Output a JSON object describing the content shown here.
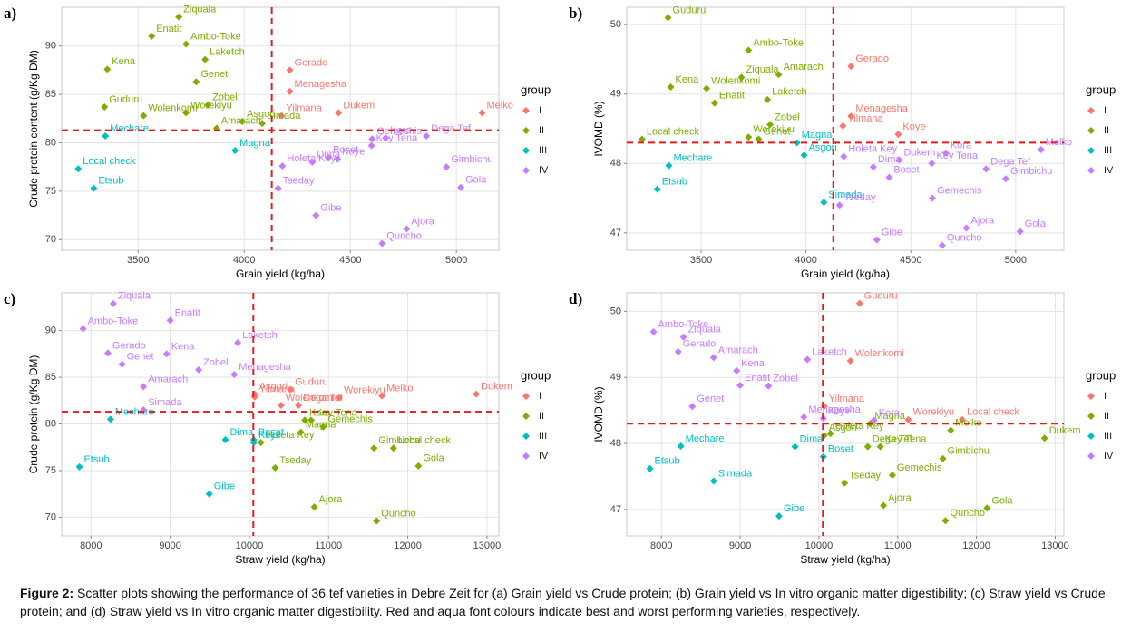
{
  "chart_data": [
    {
      "type": "scatter",
      "panel": "a)",
      "x_label": "Grain yield (kg/ha)",
      "y_label": "Crude protein content (g/Kg DM)",
      "xlim": [
        3140,
        5200
      ],
      "ylim": [
        68.9,
        94
      ],
      "xticks": [
        3500,
        4000,
        4500,
        5000
      ],
      "yticks": [
        70,
        75,
        80,
        85,
        90
      ],
      "grid": true,
      "vline": 4130,
      "hline": 81.3,
      "legend_title": "group",
      "legend_position": "right",
      "series": [
        {
          "name": "I",
          "color": "#f8766d",
          "labels": [
            "Gerado",
            "Menagesha",
            "Yilmana",
            "Dukem",
            "Melko"
          ],
          "x": [
            4215,
            4215,
            4176,
            4445,
            5121
          ],
          "values": [
            87.5,
            85.3,
            82.8,
            83.1,
            83.1
          ]
        },
        {
          "name": "II",
          "color": "#7cae00",
          "labels": [
            "Ziquala",
            "Enatit",
            "Ambo-Toke",
            "Kena",
            "Laketch",
            "Genet",
            "Zobel",
            "Guduru",
            "Wolenkomi",
            "Worekiyu",
            "Asgori",
            "Simada",
            "Amarach"
          ],
          "x": [
            3692,
            3564,
            3726,
            3355,
            3816,
            3774,
            3829,
            3342,
            3526,
            3726,
            3991,
            4085,
            3870
          ],
          "values": [
            93.0,
            91.0,
            90.2,
            87.6,
            88.6,
            86.3,
            83.9,
            83.7,
            82.8,
            83.1,
            82.2,
            82.0,
            81.5
          ]
        },
        {
          "name": "III",
          "color": "#00bfc4",
          "labels": [
            "Mechare",
            "Magna",
            "Local check",
            "Etsub"
          ],
          "x": [
            3346,
            3957,
            3218,
            3291
          ],
          "values": [
            80.7,
            79.2,
            77.3,
            75.3
          ]
        },
        {
          "name": "IV",
          "color": "#c77cff",
          "labels": [
            "Kora",
            "Gemechis",
            "Key Tena",
            "Dega Tef",
            "Boset",
            "Koye",
            "Dima",
            "Holeta Key",
            "Tseday",
            "Gimbichu",
            "Gola",
            "Gibe",
            "Ajora",
            "Quncho"
          ],
          "x": [
            4667,
            4603,
            4600,
            4859,
            4397,
            4440,
            4321,
            4180,
            4160,
            4953,
            5021,
            4338,
            4765,
            4650
          ],
          "values": [
            80.5,
            80.4,
            79.7,
            80.7,
            78.5,
            78.3,
            78.0,
            77.6,
            75.3,
            77.5,
            75.4,
            72.5,
            71.1,
            69.6
          ]
        }
      ]
    },
    {
      "type": "scatter",
      "panel": "b)",
      "x_label": "Grain yield (kg/ha)",
      "y_label": "IVOMD (%)",
      "xlim": [
        3145,
        5230
      ],
      "ylim": [
        46.75,
        50.25
      ],
      "xticks": [
        3500,
        4000,
        4500,
        5000
      ],
      "yticks": [
        47,
        48,
        49,
        50
      ],
      "grid": true,
      "vline": 4130,
      "hline": 48.3,
      "legend_title": "group",
      "legend_position": "right",
      "series": [
        {
          "name": "I",
          "color": "#f8766d",
          "labels": [
            "Gerado",
            "Menagesha",
            "Yilmana",
            "Koye"
          ],
          "x": [
            4215,
            4215,
            4176,
            4440
          ],
          "values": [
            49.4,
            48.68,
            48.54,
            48.42
          ]
        },
        {
          "name": "II",
          "color": "#7cae00",
          "labels": [
            "Guduru",
            "Ambo-Toke",
            "Amarach",
            "Ziquala",
            "Laketch",
            "Kena",
            "Wolenkomi",
            "Enatit",
            "Zobel",
            "Genet",
            "Local check",
            "Worekiyu"
          ],
          "x": [
            3342,
            3726,
            3870,
            3692,
            3816,
            3355,
            3526,
            3564,
            3829,
            3774,
            3218,
            3726
          ],
          "values": [
            50.1,
            49.63,
            49.28,
            49.24,
            48.92,
            49.1,
            49.08,
            48.87,
            48.56,
            48.35,
            48.35,
            48.38
          ]
        },
        {
          "name": "III",
          "color": "#00bfc4",
          "labels": [
            "Mechare",
            "Etsub",
            "Simada",
            "Magna",
            "Asgori"
          ],
          "x": [
            3346,
            3291,
            4085,
            3957,
            3991
          ],
          "values": [
            47.97,
            47.63,
            47.44,
            48.3,
            48.12
          ]
        },
        {
          "name": "IV",
          "color": "#c77cff",
          "labels": [
            "Holeta Key",
            "Dima",
            "Dukem",
            "Kora",
            "Melko",
            "Dega Tef",
            "Key Tena",
            "Gimbichu",
            "Boset",
            "Gemechis",
            "Tseday",
            "Ajora",
            "Gola",
            "Gibe",
            "Quncho"
          ],
          "x": [
            4180,
            4321,
            4445,
            4667,
            5121,
            4859,
            4600,
            4953,
            4397,
            4603,
            4160,
            4765,
            5021,
            4338,
            4650
          ],
          "values": [
            48.1,
            47.95,
            48.05,
            48.15,
            48.2,
            47.92,
            48.0,
            47.78,
            47.8,
            47.5,
            47.4,
            47.07,
            47.02,
            46.9,
            46.82
          ]
        }
      ]
    },
    {
      "type": "scatter",
      "panel": "c)",
      "x_label": "Straw yield (kg/ha)",
      "y_label": "Crude protein (g/Kg DM)",
      "xlim": [
        7630,
        13150
      ],
      "ylim": [
        68,
        94.05
      ],
      "xticks": [
        8000,
        9000,
        10000,
        11000,
        12000,
        13000
      ],
      "yticks": [
        70,
        75,
        80,
        85,
        90
      ],
      "grid": true,
      "vline": 10050,
      "hline": 81.3,
      "legend_title": "group",
      "legend_position": "right",
      "series": [
        {
          "name": "I",
          "color": "#f8766d",
          "labels": [
            "Asgori",
            "Yilmana",
            "Wolenkomi",
            "Dega Tef",
            "Guduru",
            "Worekiyu",
            "Melko",
            "Dukem"
          ],
          "x": [
            10067,
            10067,
            10400,
            10620,
            10517,
            11135,
            11674,
            12865
          ],
          "values": [
            83.2,
            82.9,
            82.0,
            82.0,
            83.7,
            82.8,
            83.0,
            83.2
          ]
        },
        {
          "name": "II",
          "color": "#7cae00",
          "labels": [
            "Kora",
            "Key Tena",
            "Gemechis",
            "Magna",
            "Holeta Key",
            "Tseday",
            "Local check",
            "Gimbichu",
            "Gola",
            "Ajora",
            "Quncho"
          ],
          "x": [
            10700,
            10780,
            10933,
            10650,
            10146,
            10326,
            11820,
            11573,
            12135,
            10820,
            11607
          ],
          "values": [
            80.4,
            80.4,
            79.7,
            79.1,
            78.0,
            75.3,
            77.4,
            77.4,
            75.5,
            71.1,
            69.6
          ]
        },
        {
          "name": "III",
          "color": "#00bfc4",
          "labels": [
            "Mechare",
            "Dima",
            "Boset",
            "Koye",
            "Etsub",
            "Gibe"
          ],
          "x": [
            8247,
            9697,
            10056,
            10056,
            7854,
            9494
          ],
          "values": [
            80.5,
            78.3,
            78.3,
            78.0,
            75.4,
            72.5
          ]
        },
        {
          "name": "IV",
          "color": "#c77cff",
          "labels": [
            "Ziquala",
            "Ambo-Toke",
            "Enatit",
            "Kena",
            "Gerado",
            "Genet",
            "Laketch",
            "Zobel",
            "Menagesha",
            "Amarach",
            "Simada"
          ],
          "x": [
            8281,
            7900,
            9000,
            8955,
            8213,
            8393,
            9854,
            9360,
            9809,
            8663,
            8663
          ],
          "values": [
            92.9,
            90.2,
            91.1,
            87.5,
            87.6,
            86.4,
            88.7,
            85.8,
            85.3,
            84.0,
            81.5
          ]
        }
      ]
    },
    {
      "type": "scatter",
      "panel": "d)",
      "x_label": "Straw yield (kg/ha)",
      "y_label": "IVOMD (%)",
      "xlim": [
        7560,
        13110
      ],
      "ylim": [
        46.6,
        50.28
      ],
      "xticks": [
        8000,
        9000,
        10000,
        11000,
        12000,
        13000
      ],
      "yticks": [
        47,
        48,
        49,
        50
      ],
      "grid": true,
      "vline": 10050,
      "hline": 48.3,
      "legend_title": "group",
      "legend_position": "right",
      "series": [
        {
          "name": "I",
          "color": "#f8766d",
          "labels": [
            "Guduru",
            "Wolenkomi",
            "Yilmana",
            "Worekiyu",
            "Local check"
          ],
          "x": [
            10517,
            10400,
            10067,
            11135,
            11820
          ],
          "values": [
            50.12,
            49.25,
            48.56,
            48.36,
            48.36
          ]
        },
        {
          "name": "II",
          "color": "#7cae00",
          "labels": [
            "Magna",
            "Asgori",
            "Dega Tef",
            "Holeta Key",
            "Melko",
            "Dukem",
            "Key Tena",
            "Gimbichu",
            "Gemechis",
            "Tseday",
            "Ajora",
            "Gola",
            "Quncho"
          ],
          "x": [
            10650,
            10067,
            10620,
            10146,
            11674,
            12865,
            10780,
            11573,
            10933,
            10326,
            10820,
            12135,
            11607
          ],
          "values": [
            48.3,
            48.12,
            47.95,
            48.15,
            48.2,
            48.08,
            47.95,
            47.77,
            47.52,
            47.4,
            47.06,
            47.02,
            46.83
          ]
        },
        {
          "name": "III",
          "color": "#00bfc4",
          "labels": [
            "Mechare",
            "Etsub",
            "Simada",
            "Gibe",
            "Dima",
            "Boset"
          ],
          "x": [
            8247,
            7854,
            8663,
            9494,
            9697,
            10056
          ],
          "values": [
            47.96,
            47.62,
            47.43,
            46.9,
            47.95,
            47.8
          ]
        },
        {
          "name": "IV",
          "color": "#c77cff",
          "labels": [
            "Ambo-Toke",
            "Ziquala",
            "Gerado",
            "Amarach",
            "Kena",
            "Zobel",
            "Laketch",
            "Genet",
            "Menagesha",
            "Kora",
            "Koye",
            "Enatit"
          ],
          "x": [
            7900,
            8281,
            8213,
            8663,
            8955,
            9360,
            9854,
            8393,
            9809,
            10700,
            10056,
            9000
          ],
          "values": [
            49.69,
            49.61,
            49.39,
            49.3,
            49.1,
            48.87,
            49.27,
            48.56,
            48.4,
            48.35,
            48.38,
            48.88
          ]
        }
      ]
    }
  ],
  "caption": {
    "label": "Figure 2:",
    "text": "Scatter plots showing the performance of 36 tef varieties in Debre Zeit for (a) Grain yield vs Crude protein; (b) Grain yield vs In vitro organic matter digestibility; (c) Straw yield vs Crude protein; and (d) Straw yield vs In vitro organic matter digestibility. Red and aqua font colours indicate best and worst performing varieties, respectively."
  }
}
